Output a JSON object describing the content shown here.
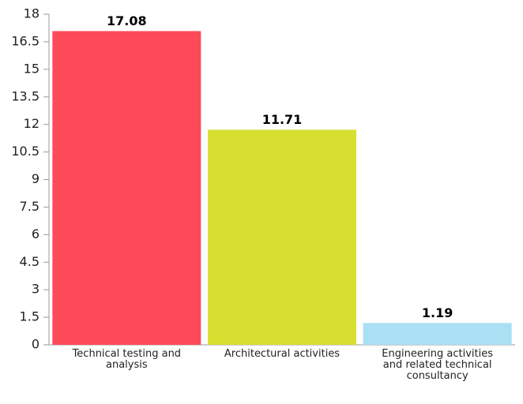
{
  "chart_data": {
    "type": "bar",
    "categories": [
      "Technical testing and analysis",
      "Architectural activities",
      "Engineering activities and related technical consultancy"
    ],
    "values": [
      17.08,
      11.71,
      1.19
    ],
    "colors": [
      "#fd4a59",
      "#d7df31",
      "#a9e0f3"
    ],
    "ylim": [
      0,
      18
    ],
    "yticks": [
      0,
      1.5,
      3,
      4.5,
      6,
      7.5,
      9,
      10.5,
      12,
      13.5,
      15,
      16.5,
      18
    ],
    "grid": false
  }
}
